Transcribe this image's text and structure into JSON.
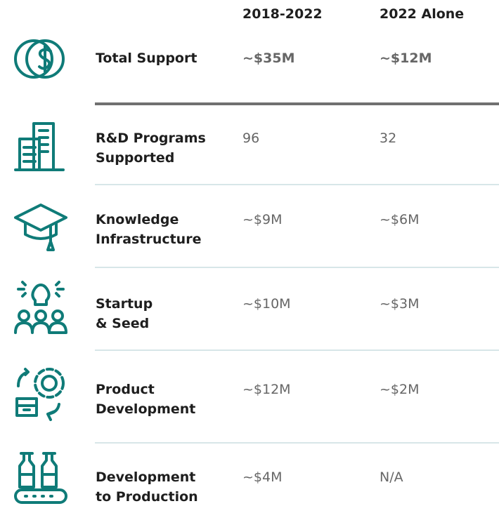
{
  "table": {
    "columns": [
      "2018-2022",
      "2022 Alone"
    ],
    "total": {
      "label": "Total Support",
      "values": [
        "~$35M",
        "~$12M"
      ]
    },
    "rows": [
      {
        "label": [
          "R&D Programs",
          "Supported"
        ],
        "values": [
          "96",
          "32"
        ]
      },
      {
        "label": [
          "Knowledge",
          "Infrastructure"
        ],
        "values": [
          "~$9M",
          "~$6M"
        ]
      },
      {
        "label": [
          "Startup",
          "& Seed"
        ],
        "values": [
          "~$10M",
          "~$3M"
        ]
      },
      {
        "label": [
          "Product",
          "Development"
        ],
        "values": [
          "~$12M",
          "~$2M"
        ]
      },
      {
        "label": [
          "Development",
          "to Production"
        ],
        "values": [
          "~$4M",
          "N/A"
        ]
      }
    ]
  }
}
